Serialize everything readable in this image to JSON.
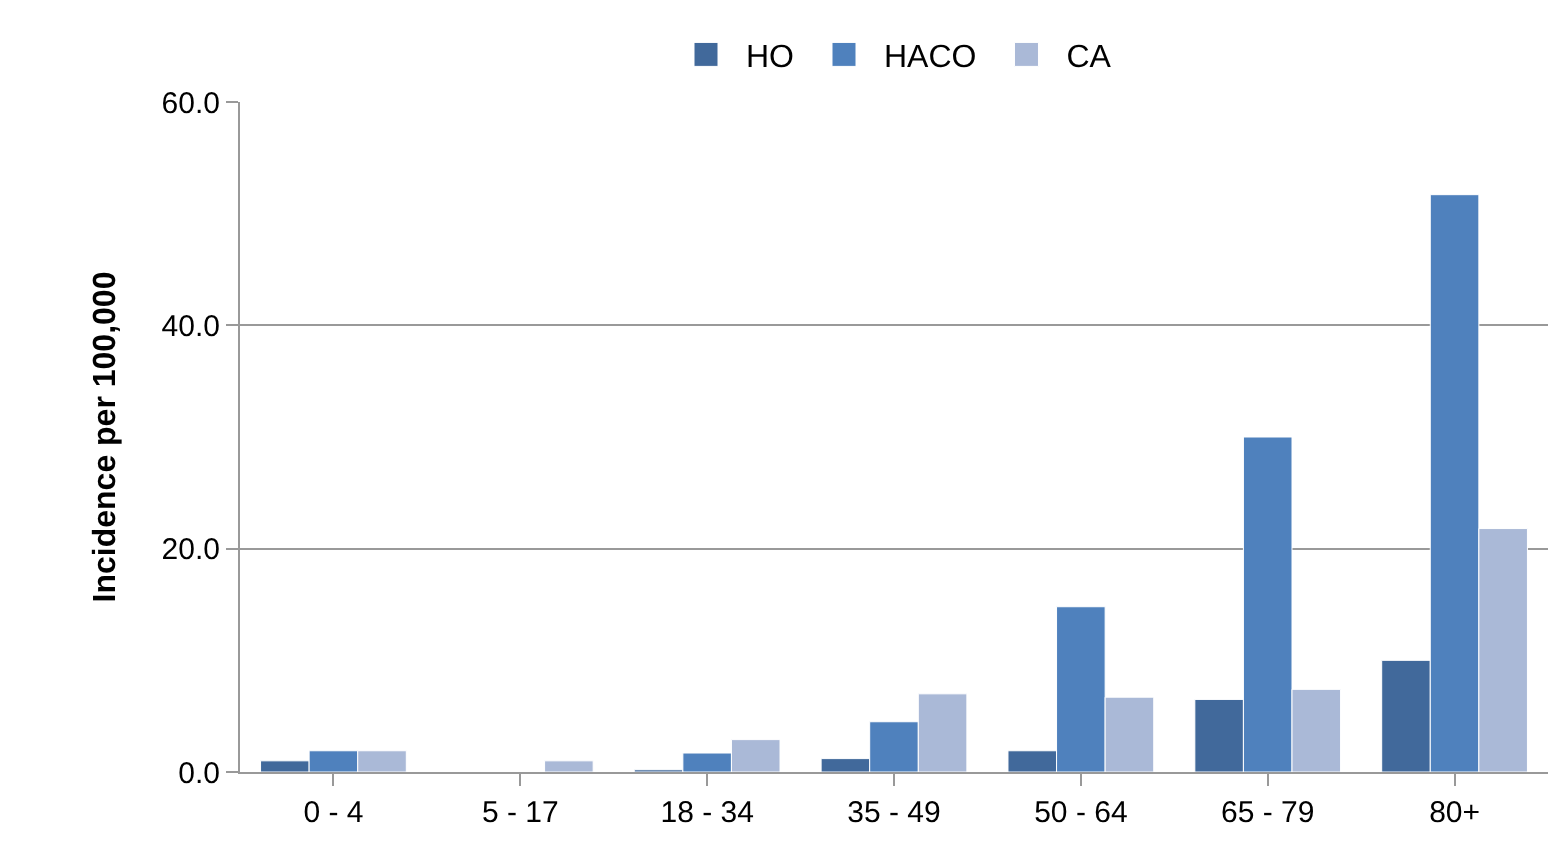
{
  "chart_data": {
    "type": "bar",
    "ylabel": "Incidence per 100,000",
    "categories": [
      "0 - 4",
      "5 - 17",
      "18 - 34",
      "35 - 49",
      "50 - 64",
      "65 - 79",
      "80+"
    ],
    "series": [
      {
        "name": "HO",
        "color": "#41699b",
        "values": [
          1.0,
          null,
          0.2,
          1.2,
          1.9,
          6.5,
          10.0
        ]
      },
      {
        "name": "HACO",
        "color": "#4f81bd",
        "values": [
          1.9,
          null,
          1.7,
          4.5,
          14.8,
          30.0,
          51.7
        ]
      },
      {
        "name": "CA",
        "color": "#aab9d7",
        "values": [
          1.9,
          1.0,
          2.9,
          7.0,
          6.7,
          7.4,
          21.8
        ]
      }
    ],
    "ylim": [
      0,
      60
    ],
    "yticks": [
      {
        "value": 0,
        "label": "0.0"
      },
      {
        "value": 20,
        "label": "20.0"
      },
      {
        "value": 40,
        "label": "40.0"
      },
      {
        "value": 60,
        "label": "60.0"
      }
    ],
    "grid": "y",
    "legend": "top"
  }
}
